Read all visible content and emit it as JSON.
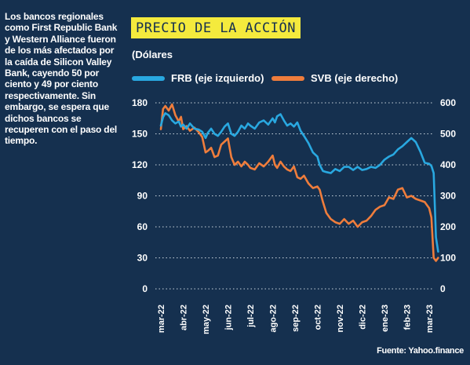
{
  "description": "Los bancos regionales como First Republic Bank y Western Alliance fueron de los más afectados por la caída de Silicon Valley Bank, cayendo 50 por ciento y 49 por ciento respectivamente. Sin embargo, se espera que dichos bancos se recuperen con el paso del tiempo.",
  "source": "Fuente: Yahoo.finance",
  "colors": {
    "background": "#15304f",
    "frb": "#29a8e0",
    "svb": "#ef7d3c",
    "title_bg": "#f4ea3d",
    "grid": "#c9d3dd"
  },
  "chart_data": {
    "type": "line",
    "title": "PRECIO DE LA ACCIÓN",
    "unit_label": "(Dólares",
    "categories": [
      "mar-22",
      "abr-22",
      "may-22",
      "jun-22",
      "jul-22",
      "ago-22",
      "sep-22",
      "oct-22",
      "nov-22",
      "dic-22",
      "ene-23",
      "feb-23",
      "mar-23"
    ],
    "left_axis": {
      "ticks": [
        "0",
        "30",
        "60",
        "90",
        "120",
        "150",
        "180"
      ],
      "ylim": [
        0,
        180
      ]
    },
    "right_axis": {
      "ticks": [
        "0",
        "100",
        "200",
        "300",
        "400",
        "500",
        "600"
      ],
      "ylim": [
        0,
        600
      ]
    },
    "grid": "horizontal-dotted",
    "legend_position": "top",
    "series": [
      {
        "name": "FRB (eje izquierdo)",
        "axis": "left",
        "x": [
          0,
          0.1,
          0.2,
          0.35,
          0.5,
          0.65,
          0.8,
          0.9,
          1,
          1.15,
          1.3,
          1.5,
          1.7,
          1.85,
          2,
          2.1,
          2.25,
          2.4,
          2.55,
          2.7,
          2.85,
          3,
          3.15,
          3.3,
          3.45,
          3.6,
          3.75,
          3.9,
          4,
          4.2,
          4.4,
          4.6,
          4.8,
          5,
          5.1,
          5.2,
          5.35,
          5.5,
          5.65,
          5.8,
          5.95,
          6.1,
          6.25,
          6.4,
          6.6,
          6.8,
          7,
          7.1,
          7.25,
          7.4,
          7.6,
          7.8,
          8,
          8.2,
          8.4,
          8.6,
          8.8,
          9,
          9.2,
          9.4,
          9.6,
          9.8,
          10,
          10.2,
          10.4,
          10.6,
          10.8,
          11,
          11.2,
          11.4,
          11.6,
          11.8,
          12,
          12.1,
          12.2,
          12.3,
          12.4
        ],
        "values": [
          158,
          166,
          170,
          168,
          163,
          160,
          162,
          157,
          159,
          155,
          160,
          155,
          154,
          152,
          146,
          151,
          155,
          150,
          148,
          152,
          157,
          160,
          150,
          148,
          152,
          158,
          155,
          160,
          158,
          155,
          161,
          163,
          159,
          165,
          161,
          167,
          169,
          163,
          158,
          160,
          157,
          161,
          153,
          148,
          141,
          132,
          128,
          120,
          114,
          113,
          112,
          116,
          114,
          118,
          118,
          115,
          118,
          115,
          116,
          118,
          117,
          120,
          125,
          128,
          130,
          135,
          138,
          142,
          146,
          142,
          133,
          122,
          121,
          119,
          112,
          50,
          36
        ]
      },
      {
        "name": "SVB (eje derecho)",
        "axis": "right",
        "x": [
          0,
          0.1,
          0.2,
          0.35,
          0.5,
          0.65,
          0.8,
          0.9,
          1,
          1.15,
          1.3,
          1.5,
          1.7,
          1.85,
          2,
          2.1,
          2.25,
          2.4,
          2.55,
          2.7,
          2.85,
          3,
          3.15,
          3.3,
          3.45,
          3.6,
          3.75,
          3.9,
          4,
          4.2,
          4.4,
          4.6,
          4.8,
          5,
          5.1,
          5.2,
          5.35,
          5.5,
          5.65,
          5.8,
          5.95,
          6.1,
          6.25,
          6.4,
          6.6,
          6.8,
          7,
          7.1,
          7.25,
          7.4,
          7.6,
          7.8,
          8,
          8.2,
          8.4,
          8.6,
          8.8,
          9,
          9.2,
          9.4,
          9.6,
          9.8,
          10,
          10.2,
          10.4,
          10.6,
          10.8,
          11,
          11.2,
          11.4,
          11.6,
          11.8,
          12,
          12.1,
          12.2,
          12.3,
          12.4
        ],
        "values": [
          515,
          580,
          590,
          575,
          595,
          560,
          540,
          555,
          515,
          525,
          510,
          520,
          505,
          490,
          440,
          445,
          455,
          425,
          430,
          465,
          475,
          485,
          425,
          400,
          410,
          395,
          410,
          400,
          390,
          385,
          405,
          395,
          410,
          430,
          400,
          390,
          410,
          395,
          385,
          380,
          395,
          360,
          355,
          365,
          340,
          325,
          330,
          320,
          280,
          245,
          225,
          215,
          210,
          225,
          210,
          220,
          200,
          215,
          220,
          235,
          255,
          265,
          270,
          295,
          290,
          320,
          325,
          295,
          300,
          290,
          285,
          280,
          260,
          230,
          100,
          90,
          100
        ]
      }
    ]
  }
}
